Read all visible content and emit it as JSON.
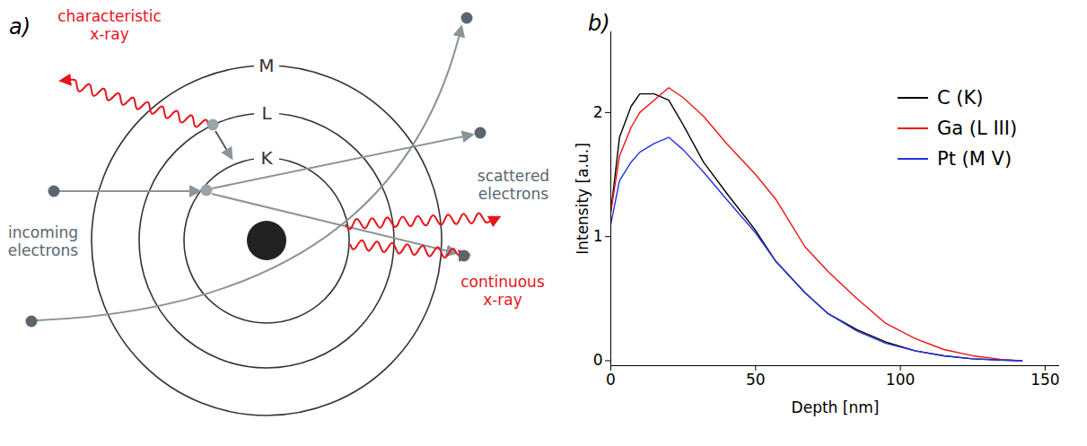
{
  "diagram": {
    "panel_label": "a)",
    "shells": [
      "K",
      "L",
      "M"
    ],
    "labels": {
      "characteristic": "characteristic x-ray",
      "incoming": "incoming electrons",
      "scattered": "scattered electrons",
      "continuous": "continuous x-ray"
    }
  },
  "chart_data": {
    "type": "line",
    "panel_label": "b)",
    "x_label": "Depth [nm]",
    "y_label": "Intensity [a.u.]",
    "x": [
      0,
      3,
      7,
      10,
      15,
      20,
      25,
      32,
      40,
      50,
      57,
      67,
      75,
      85,
      95,
      105,
      115,
      125,
      135,
      142
    ],
    "series": [
      {
        "name": "C (K)",
        "color": "#000000",
        "values": [
          1.2,
          1.8,
          2.05,
          2.15,
          2.15,
          2.1,
          1.9,
          1.6,
          1.35,
          1.05,
          0.8,
          0.55,
          0.38,
          0.25,
          0.15,
          0.08,
          0.04,
          0.015,
          0.005,
          0
        ]
      },
      {
        "name": "Ga (L III)",
        "color": "#ee1111",
        "values": [
          1.2,
          1.65,
          1.88,
          2.0,
          2.1,
          2.2,
          2.12,
          1.97,
          1.75,
          1.5,
          1.3,
          0.92,
          0.72,
          0.5,
          0.3,
          0.18,
          0.09,
          0.04,
          0.01,
          0
        ]
      },
      {
        "name": "Pt (M V)",
        "color": "#2233dd",
        "values": [
          1.1,
          1.45,
          1.6,
          1.68,
          1.75,
          1.8,
          1.7,
          1.52,
          1.3,
          1.03,
          0.8,
          0.55,
          0.38,
          0.24,
          0.14,
          0.08,
          0.04,
          0.015,
          0.005,
          0
        ]
      }
    ],
    "xlim": [
      0,
      155
    ],
    "ylim": [
      -0.04,
      2.65
    ],
    "xticks": [
      0,
      50,
      100,
      150
    ],
    "yticks": [
      0,
      1,
      2
    ],
    "grid": false,
    "legend": "top-right"
  }
}
